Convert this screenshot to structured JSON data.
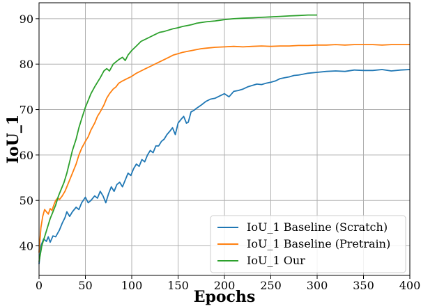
{
  "chart_data": {
    "type": "line",
    "title": "",
    "xlabel": "Epochs",
    "ylabel": "IoU_1",
    "xlim": [
      0,
      400
    ],
    "ylim": [
      33.5,
      93.5
    ],
    "xticks": [
      0,
      50,
      100,
      150,
      200,
      250,
      300,
      350,
      400
    ],
    "yticks": [
      40,
      50,
      60,
      70,
      80,
      90
    ],
    "grid": true,
    "legend_position": "bottom-right",
    "series": [
      {
        "name": "IoU_1 Baseline (Scratch)",
        "color": "#1f77b4",
        "points": [
          [
            0,
            36
          ],
          [
            2,
            40
          ],
          [
            5,
            41.5
          ],
          [
            8,
            41
          ],
          [
            10,
            42
          ],
          [
            12,
            40.8
          ],
          [
            15,
            42.2
          ],
          [
            18,
            42
          ],
          [
            22,
            43.5
          ],
          [
            25,
            45
          ],
          [
            28,
            46.2
          ],
          [
            30,
            47.5
          ],
          [
            33,
            46.5
          ],
          [
            36,
            47.5
          ],
          [
            40,
            48.5
          ],
          [
            43,
            48
          ],
          [
            46,
            49.5
          ],
          [
            50,
            50.7
          ],
          [
            53,
            49.5
          ],
          [
            56,
            50
          ],
          [
            60,
            51
          ],
          [
            63,
            50.5
          ],
          [
            66,
            52
          ],
          [
            69,
            51
          ],
          [
            72,
            49.5
          ],
          [
            75,
            51.5
          ],
          [
            78,
            53
          ],
          [
            81,
            52
          ],
          [
            84,
            53.5
          ],
          [
            87,
            54
          ],
          [
            90,
            53
          ],
          [
            93,
            54.5
          ],
          [
            96,
            56
          ],
          [
            99,
            55.5
          ],
          [
            102,
            57
          ],
          [
            105,
            58
          ],
          [
            108,
            57.5
          ],
          [
            111,
            59
          ],
          [
            114,
            58.5
          ],
          [
            117,
            60
          ],
          [
            120,
            61
          ],
          [
            123,
            60.5
          ],
          [
            126,
            62
          ],
          [
            129,
            62
          ],
          [
            132,
            63
          ],
          [
            135,
            63.5
          ],
          [
            138,
            64.5
          ],
          [
            141,
            65.2
          ],
          [
            144,
            66
          ],
          [
            147,
            64.5
          ],
          [
            150,
            67
          ],
          [
            153,
            67.8
          ],
          [
            156,
            68.5
          ],
          [
            159,
            67
          ],
          [
            161,
            67.2
          ],
          [
            164,
            69.5
          ],
          [
            167,
            69.8
          ],
          [
            170,
            70.3
          ],
          [
            175,
            71
          ],
          [
            180,
            71.8
          ],
          [
            185,
            72.3
          ],
          [
            190,
            72.5
          ],
          [
            195,
            73
          ],
          [
            200,
            73.5
          ],
          [
            205,
            72.8
          ],
          [
            210,
            74
          ],
          [
            215,
            74.2
          ],
          [
            220,
            74.5
          ],
          [
            225,
            75
          ],
          [
            230,
            75.3
          ],
          [
            235,
            75.6
          ],
          [
            240,
            75.5
          ],
          [
            245,
            75.8
          ],
          [
            250,
            76
          ],
          [
            255,
            76.3
          ],
          [
            260,
            76.8
          ],
          [
            265,
            77
          ],
          [
            270,
            77.2
          ],
          [
            275,
            77.5
          ],
          [
            280,
            77.6
          ],
          [
            285,
            77.8
          ],
          [
            290,
            78
          ],
          [
            300,
            78.2
          ],
          [
            310,
            78.4
          ],
          [
            320,
            78.5
          ],
          [
            330,
            78.4
          ],
          [
            340,
            78.7
          ],
          [
            350,
            78.6
          ],
          [
            360,
            78.6
          ],
          [
            370,
            78.8
          ],
          [
            380,
            78.5
          ],
          [
            390,
            78.7
          ],
          [
            400,
            78.8
          ]
        ]
      },
      {
        "name": "IoU_1 Baseline (Pretrain)",
        "color": "#ff7f0e",
        "points": [
          [
            0,
            38.5
          ],
          [
            2,
            44
          ],
          [
            4,
            46.5
          ],
          [
            6,
            48
          ],
          [
            8,
            47.5
          ],
          [
            10,
            47
          ],
          [
            12,
            48.2
          ],
          [
            14,
            47.8
          ],
          [
            16,
            49
          ],
          [
            18,
            50
          ],
          [
            20,
            50.5
          ],
          [
            22,
            50.2
          ],
          [
            25,
            51
          ],
          [
            28,
            52
          ],
          [
            30,
            53
          ],
          [
            33,
            54.5
          ],
          [
            36,
            56
          ],
          [
            40,
            58
          ],
          [
            43,
            60
          ],
          [
            46,
            61.5
          ],
          [
            50,
            63
          ],
          [
            53,
            64
          ],
          [
            56,
            65.5
          ],
          [
            60,
            67
          ],
          [
            63,
            68.5
          ],
          [
            66,
            69.5
          ],
          [
            70,
            71
          ],
          [
            73,
            72.5
          ],
          [
            76,
            73.5
          ],
          [
            80,
            74.5
          ],
          [
            83,
            75
          ],
          [
            86,
            75.8
          ],
          [
            90,
            76.3
          ],
          [
            95,
            76.8
          ],
          [
            100,
            77.3
          ],
          [
            105,
            78
          ],
          [
            110,
            78.5
          ],
          [
            115,
            79
          ],
          [
            120,
            79.5
          ],
          [
            125,
            80
          ],
          [
            130,
            80.5
          ],
          [
            135,
            81
          ],
          [
            140,
            81.5
          ],
          [
            145,
            82
          ],
          [
            150,
            82.3
          ],
          [
            155,
            82.6
          ],
          [
            160,
            82.8
          ],
          [
            165,
            83
          ],
          [
            170,
            83.2
          ],
          [
            175,
            83.4
          ],
          [
            180,
            83.5
          ],
          [
            190,
            83.7
          ],
          [
            200,
            83.8
          ],
          [
            210,
            83.9
          ],
          [
            220,
            83.8
          ],
          [
            230,
            83.9
          ],
          [
            240,
            84
          ],
          [
            250,
            83.9
          ],
          [
            260,
            84
          ],
          [
            270,
            84
          ],
          [
            280,
            84.1
          ],
          [
            290,
            84.1
          ],
          [
            300,
            84.2
          ],
          [
            310,
            84.2
          ],
          [
            320,
            84.3
          ],
          [
            330,
            84.2
          ],
          [
            340,
            84.3
          ],
          [
            350,
            84.3
          ],
          [
            360,
            84.3
          ],
          [
            370,
            84.2
          ],
          [
            380,
            84.3
          ],
          [
            390,
            84.3
          ],
          [
            400,
            84.3
          ]
        ]
      },
      {
        "name": "IoU_1 Our",
        "color": "#2ca02c",
        "points": [
          [
            0,
            36.5
          ],
          [
            3,
            40
          ],
          [
            6,
            42
          ],
          [
            9,
            44
          ],
          [
            12,
            46
          ],
          [
            15,
            47.5
          ],
          [
            18,
            49
          ],
          [
            21,
            51
          ],
          [
            24,
            52.5
          ],
          [
            27,
            54
          ],
          [
            30,
            56
          ],
          [
            33,
            58.5
          ],
          [
            36,
            61
          ],
          [
            40,
            63.5
          ],
          [
            43,
            66
          ],
          [
            46,
            68
          ],
          [
            50,
            70.5
          ],
          [
            53,
            72
          ],
          [
            56,
            73.5
          ],
          [
            60,
            75
          ],
          [
            63,
            76
          ],
          [
            66,
            77
          ],
          [
            70,
            78.5
          ],
          [
            73,
            79
          ],
          [
            76,
            78.5
          ],
          [
            80,
            80
          ],
          [
            83,
            80.5
          ],
          [
            86,
            81
          ],
          [
            90,
            81.5
          ],
          [
            93,
            80.8
          ],
          [
            96,
            82
          ],
          [
            100,
            83
          ],
          [
            105,
            84
          ],
          [
            110,
            85
          ],
          [
            115,
            85.5
          ],
          [
            120,
            86
          ],
          [
            125,
            86.5
          ],
          [
            130,
            87
          ],
          [
            135,
            87.2
          ],
          [
            140,
            87.5
          ],
          [
            145,
            87.8
          ],
          [
            150,
            88
          ],
          [
            155,
            88.3
          ],
          [
            160,
            88.5
          ],
          [
            165,
            88.7
          ],
          [
            170,
            89
          ],
          [
            180,
            89.3
          ],
          [
            190,
            89.5
          ],
          [
            200,
            89.8
          ],
          [
            210,
            90
          ],
          [
            220,
            90.1
          ],
          [
            230,
            90.2
          ],
          [
            240,
            90.3
          ],
          [
            250,
            90.4
          ],
          [
            260,
            90.5
          ],
          [
            270,
            90.6
          ],
          [
            280,
            90.7
          ],
          [
            290,
            90.8
          ],
          [
            300,
            90.8
          ]
        ]
      }
    ]
  }
}
